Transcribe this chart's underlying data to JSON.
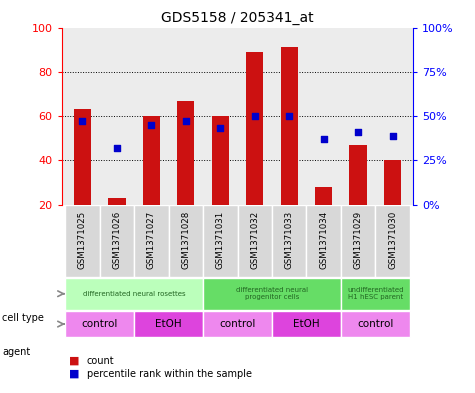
{
  "title": "GDS5158 / 205341_at",
  "samples": [
    "GSM1371025",
    "GSM1371026",
    "GSM1371027",
    "GSM1371028",
    "GSM1371031",
    "GSM1371032",
    "GSM1371033",
    "GSM1371034",
    "GSM1371029",
    "GSM1371030"
  ],
  "counts": [
    63,
    23,
    60,
    67,
    60,
    89,
    91,
    28,
    47,
    40
  ],
  "percentiles": [
    47,
    32,
    45,
    47,
    43,
    50,
    50,
    37,
    41,
    39
  ],
  "ylim_left": [
    20,
    100
  ],
  "ylim_right": [
    0,
    100
  ],
  "yticks_left": [
    20,
    40,
    60,
    80,
    100
  ],
  "yticks_right": [
    0,
    25,
    50,
    75,
    100
  ],
  "ytick_labels_right": [
    "0%",
    "25%",
    "50%",
    "75%",
    "100%"
  ],
  "bar_color": "#cc1111",
  "dot_color": "#0000cc",
  "cell_groups": [
    {
      "label": "differentiated neural rosettes",
      "start": 0,
      "end": 3,
      "color": "#bbffbb"
    },
    {
      "label": "differentiated neural\nprogenitor cells",
      "start": 4,
      "end": 7,
      "color": "#66dd66"
    },
    {
      "label": "undifferentiated\nH1 hESC parent",
      "start": 8,
      "end": 9,
      "color": "#66dd66"
    }
  ],
  "agent_groups": [
    {
      "label": "control",
      "start": 0,
      "end": 1,
      "color": "#ee88ee"
    },
    {
      "label": "EtOH",
      "start": 2,
      "end": 3,
      "color": "#dd44dd"
    },
    {
      "label": "control",
      "start": 4,
      "end": 5,
      "color": "#ee88ee"
    },
    {
      "label": "EtOH",
      "start": 6,
      "end": 7,
      "color": "#dd44dd"
    },
    {
      "label": "control",
      "start": 8,
      "end": 9,
      "color": "#ee88ee"
    }
  ],
  "legend_count_label": "count",
  "legend_pct_label": "percentile rank within the sample",
  "cell_type_label": "cell type",
  "agent_label": "agent",
  "background_color": "#ffffff",
  "bar_bottom": 20,
  "gridline_yticks": [
    40,
    60,
    80
  ],
  "plot_bg": "#ececec"
}
